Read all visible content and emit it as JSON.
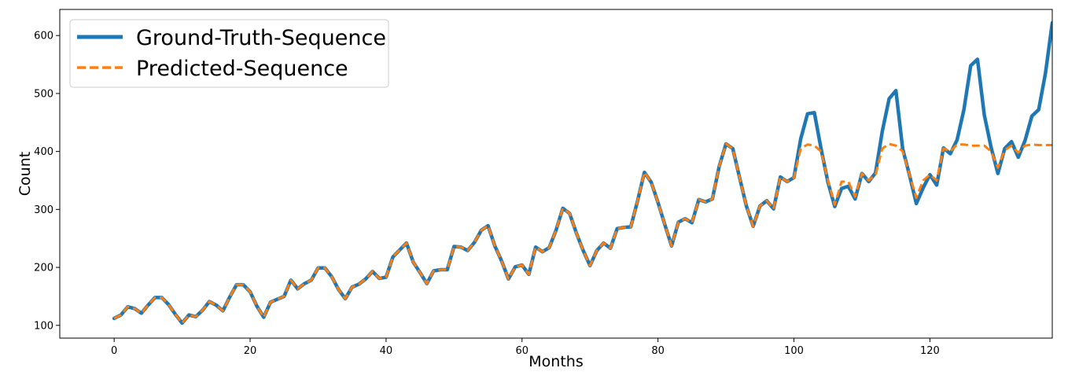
{
  "chart_data": {
    "type": "line",
    "xlabel": "Months",
    "ylabel": "Count",
    "xlim": [
      -8,
      138
    ],
    "ylim": [
      78,
      645
    ],
    "x_ticks": [
      0,
      20,
      40,
      60,
      80,
      100,
      120
    ],
    "y_ticks": [
      100,
      200,
      300,
      400,
      500,
      600
    ],
    "grid": false,
    "legend_position": "top-left",
    "series": [
      {
        "name": "Ground-Truth-Sequence",
        "color": "#1f77b4",
        "style": "solid",
        "x_start": 0,
        "values": [
          112,
          118,
          132,
          129,
          121,
          135,
          148,
          148,
          136,
          119,
          104,
          118,
          115,
          126,
          141,
          135,
          125,
          149,
          170,
          170,
          158,
          133,
          114,
          140,
          145,
          150,
          178,
          163,
          172,
          178,
          199,
          199,
          184,
          162,
          146,
          166,
          171,
          180,
          193,
          181,
          183,
          218,
          230,
          242,
          209,
          191,
          172,
          194,
          196,
          196,
          236,
          235,
          229,
          243,
          264,
          272,
          237,
          211,
          180,
          201,
          204,
          188,
          235,
          227,
          234,
          264,
          302,
          293,
          259,
          229,
          203,
          229,
          242,
          233,
          267,
          269,
          270,
          315,
          364,
          347,
          312,
          274,
          237,
          278,
          284,
          277,
          317,
          313,
          318,
          374,
          413,
          405,
          355,
          306,
          271,
          306,
          315,
          301,
          356,
          348,
          355,
          422,
          465,
          467,
          404,
          347,
          305,
          336,
          340,
          318,
          362,
          348,
          363,
          435,
          491,
          505,
          404,
          359,
          310,
          337,
          360,
          342,
          406,
          396,
          420,
          472,
          548,
          559,
          463,
          407,
          362,
          405,
          417,
          390,
          419,
          461,
          472,
          535,
          622
        ]
      },
      {
        "name": "Predicted-Sequence",
        "color": "#ff7f0e",
        "style": "dashed",
        "x_start": 0,
        "values": [
          112,
          118,
          132,
          129,
          121,
          135,
          148,
          148,
          136,
          119,
          104,
          118,
          115,
          126,
          141,
          135,
          125,
          149,
          170,
          170,
          158,
          133,
          114,
          140,
          145,
          150,
          178,
          163,
          172,
          178,
          199,
          199,
          184,
          162,
          146,
          166,
          171,
          180,
          193,
          181,
          183,
          218,
          230,
          242,
          209,
          191,
          172,
          194,
          196,
          196,
          236,
          235,
          229,
          243,
          264,
          272,
          237,
          211,
          180,
          201,
          204,
          188,
          235,
          227,
          234,
          264,
          302,
          293,
          259,
          229,
          203,
          229,
          242,
          233,
          267,
          269,
          270,
          315,
          364,
          347,
          312,
          274,
          237,
          278,
          284,
          277,
          317,
          313,
          318,
          374,
          413,
          405,
          355,
          306,
          271,
          306,
          315,
          301,
          356,
          348,
          355,
          405,
          412,
          410,
          400,
          350,
          308,
          348,
          348,
          322,
          362,
          350,
          360,
          405,
          413,
          410,
          400,
          360,
          320,
          350,
          360,
          350,
          405,
          400,
          412,
          412,
          410,
          410,
          410,
          400,
          372,
          402,
          410,
          398,
          410,
          412,
          411,
          411,
          411
        ]
      }
    ]
  }
}
